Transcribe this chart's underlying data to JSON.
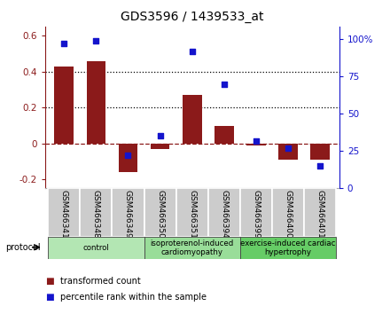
{
  "title": "GDS3596 / 1439533_at",
  "samples": [
    "GSM466341",
    "GSM466348",
    "GSM466349",
    "GSM466350",
    "GSM466351",
    "GSM466394",
    "GSM466399",
    "GSM466400",
    "GSM466401"
  ],
  "bar_values": [
    0.43,
    0.46,
    -0.16,
    -0.03,
    0.27,
    0.1,
    -0.01,
    -0.09,
    -0.09
  ],
  "scatter_values": [
    97,
    99,
    22,
    35,
    92,
    70,
    32,
    27,
    15
  ],
  "bar_color": "#8B1A1A",
  "scatter_color": "#1414CC",
  "ylim_left": [
    -0.25,
    0.65
  ],
  "ylim_right": [
    0,
    108.3
  ],
  "yticks_left": [
    -0.2,
    0.0,
    0.2,
    0.4,
    0.6
  ],
  "yticks_right": [
    0,
    25,
    50,
    75,
    100
  ],
  "ytick_labels_left": [
    "-0.2",
    "0",
    "0.2",
    "0.4",
    "0.6"
  ],
  "ytick_labels_right": [
    "0",
    "25",
    "50",
    "75",
    "100%"
  ],
  "hlines": [
    0.2,
    0.4
  ],
  "groups": [
    {
      "label": "control",
      "start": 0,
      "end": 3,
      "color": "#b3e6b3"
    },
    {
      "label": "isoproterenol-induced\ncardiomyopathy",
      "start": 3,
      "end": 6,
      "color": "#99dd99"
    },
    {
      "label": "exercise-induced cardiac\nhypertrophy",
      "start": 6,
      "end": 9,
      "color": "#66cc66"
    }
  ],
  "protocol_label": "protocol",
  "legend_items": [
    {
      "label": "transformed count",
      "color": "#8B1A1A"
    },
    {
      "label": "percentile rank within the sample",
      "color": "#1414CC"
    }
  ],
  "background_color": "#ffffff"
}
